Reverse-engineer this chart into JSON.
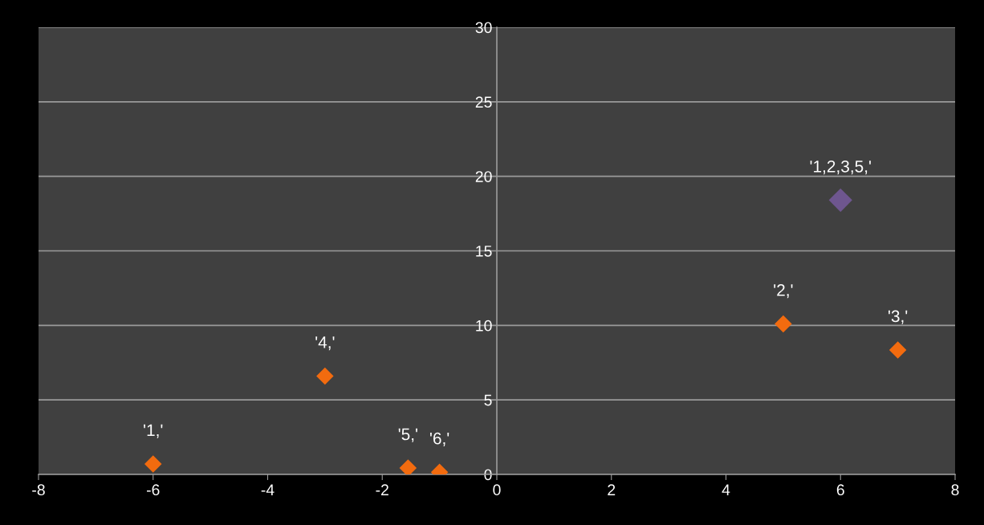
{
  "chart_data": {
    "type": "scatter",
    "marker": "diamond",
    "grid": "y",
    "series": [
      {
        "color": "#f26b0f",
        "x": [
          -6,
          -3,
          -1.55,
          -1,
          5,
          7
        ],
        "values": [
          0.7,
          6.6,
          0.43,
          0.15,
          10.1,
          8.35
        ]
      },
      {
        "color": "#6e568f",
        "x": [
          6
        ],
        "values": [
          18.4
        ]
      }
    ],
    "annotations": [
      {
        "text": "'1,'",
        "x": -6,
        "y": 0.7
      },
      {
        "text": "'4,'",
        "x": -3,
        "y": 6.6
      },
      {
        "text": "'5,'",
        "x": -1.55,
        "y": 0.43
      },
      {
        "text": "'6,'",
        "x": -1,
        "y": 0.15
      },
      {
        "text": "'2,'",
        "x": 5,
        "y": 10.1
      },
      {
        "text": "'3,'",
        "x": 7,
        "y": 8.35
      },
      {
        "text": "'1,2,3,5,'",
        "x": 6,
        "y": 18.4
      }
    ],
    "xlim": [
      -8,
      8
    ],
    "xticks": [
      -8,
      -6,
      -4,
      -2,
      0,
      2,
      4,
      6,
      8
    ],
    "ylim": [
      0,
      30
    ],
    "yticks": [
      0,
      5,
      10,
      15,
      20,
      25,
      30
    ]
  }
}
